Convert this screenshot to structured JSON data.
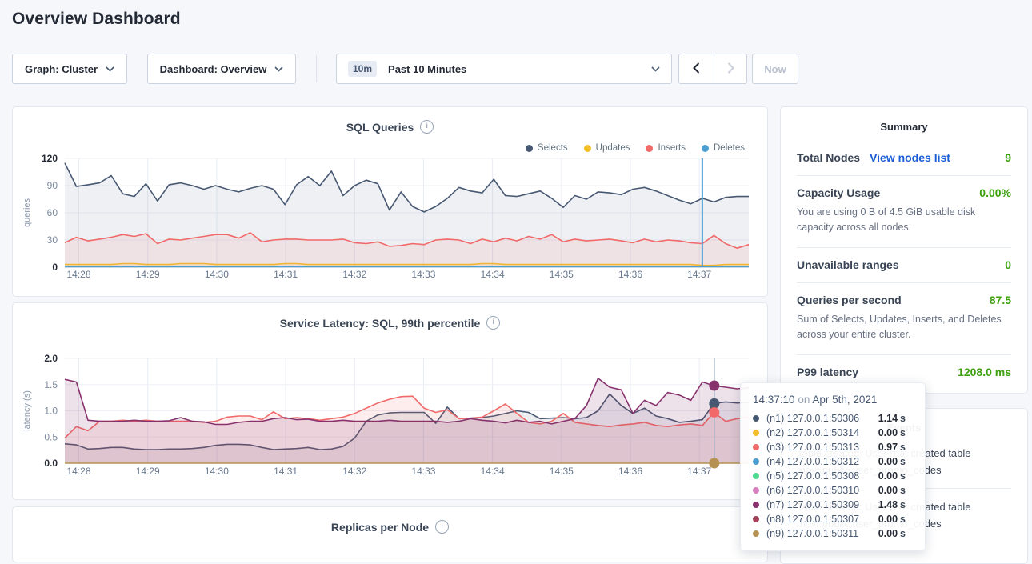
{
  "page_title": "Overview Dashboard",
  "controls": {
    "graph_dropdown": "Graph: Cluster",
    "dashboard_dropdown": "Dashboard: Overview",
    "time_badge": "10m",
    "time_range": "Past 10 Minutes",
    "now_button": "Now"
  },
  "summary": {
    "title": "Summary",
    "rows": [
      {
        "label": "Total Nodes",
        "link": "View nodes list",
        "value": "9"
      },
      {
        "label": "Capacity Usage",
        "value": "0.00%",
        "desc": "You are using 0 B of 4.5 GiB usable disk capacity across all nodes."
      },
      {
        "label": "Unavailable ranges",
        "value": "0"
      },
      {
        "label": "Queries per second",
        "value": "87.5",
        "desc": "Sum of Selects, Updates, Inserts, and Deletes across your entire cluster."
      },
      {
        "label": "P99 latency",
        "value": "1208.0 ms"
      }
    ]
  },
  "events": {
    "title": "Events",
    "items": [
      {
        "text": "Table created: User root created table movr.public.user_promo_codes"
      },
      {
        "text": "Table created: User root created table movr.public.user_promo_codes"
      }
    ]
  },
  "tooltip": {
    "time": "14:37:10",
    "sep": "on",
    "date": "Apr 5th, 2021",
    "rows": [
      {
        "color": "#475872",
        "name": "(n1) 127.0.0.1:50306",
        "value": "1.14",
        "unit": "s"
      },
      {
        "color": "#F2BE2C",
        "name": "(n2) 127.0.0.1:50314",
        "value": "0.00",
        "unit": "s"
      },
      {
        "color": "#F16969",
        "name": "(n3) 127.0.0.1:50313",
        "value": "0.97",
        "unit": "s"
      },
      {
        "color": "#4E9FD1",
        "name": "(n4) 127.0.0.1:50312",
        "value": "0.00",
        "unit": "s"
      },
      {
        "color": "#49D990",
        "name": "(n5) 127.0.0.1:50308",
        "value": "0.00",
        "unit": "s"
      },
      {
        "color": "#D77FBF",
        "name": "(n6) 127.0.0.1:50310",
        "value": "0.00",
        "unit": "s"
      },
      {
        "color": "#87326D",
        "name": "(n7) 127.0.0.1:50309",
        "value": "1.48",
        "unit": "s"
      },
      {
        "color": "#A3415B",
        "name": "(n8) 127.0.0.1:50307",
        "value": "0.00",
        "unit": "s"
      },
      {
        "color": "#B59153",
        "name": "(n9) 127.0.0.1:50311",
        "value": "0.00",
        "unit": "s"
      }
    ]
  },
  "chart_data": [
    {
      "id": "sql",
      "type": "line",
      "title": "SQL Queries",
      "ylabel": "queries",
      "ylim": [
        0,
        120
      ],
      "yticks": [
        0,
        30,
        60,
        90,
        120
      ],
      "ytick_labels": [
        "0",
        "30",
        "60",
        "90",
        "120"
      ],
      "x_tick_labels": [
        "14:28",
        "14:29",
        "14:30",
        "14:31",
        "14:32",
        "14:33",
        "14:34",
        "14:35",
        "14:36",
        "14:37"
      ],
      "grid": true,
      "legend_position": "top-right",
      "hover_line": {
        "x_frac": 0.932,
        "color": "#4E9FD1"
      },
      "series": [
        {
          "name": "Selects",
          "color": "#475872",
          "fill": "rgba(95,108,135,0.10)",
          "values": [
            115,
            89,
            91,
            93,
            101,
            81,
            78,
            92,
            73,
            91,
            93,
            90,
            86,
            90,
            86,
            83,
            87,
            90,
            86,
            69,
            91,
            100,
            90,
            106,
            79,
            90,
            96,
            92,
            63,
            83,
            67,
            61,
            67,
            76,
            88,
            84,
            82,
            97,
            79,
            78,
            81,
            84,
            76,
            66,
            79,
            75,
            83,
            82,
            80,
            86,
            88,
            84,
            79,
            74,
            70,
            76,
            72,
            77,
            78,
            78
          ]
        },
        {
          "name": "Updates",
          "color": "#F2BE2C",
          "fill": "rgba(242,190,44,0.12)",
          "values": [
            3,
            3,
            3,
            3,
            3,
            4,
            4,
            3,
            3,
            3,
            4,
            4,
            4,
            3,
            3,
            3,
            3,
            3,
            3,
            4,
            4,
            3,
            3,
            3,
            3,
            3,
            3,
            3,
            3,
            3,
            3,
            3,
            3,
            3,
            3,
            3,
            4,
            4,
            3,
            3,
            3,
            3,
            3,
            3,
            3,
            3,
            3,
            3,
            3,
            3,
            3,
            3,
            3,
            3,
            3,
            2,
            2,
            3,
            3,
            3
          ]
        },
        {
          "name": "Inserts",
          "color": "#F16969",
          "fill": "rgba(241,105,105,0.10)",
          "values": [
            27,
            33,
            29,
            31,
            33,
            36,
            34,
            37,
            26,
            31,
            30,
            32,
            34,
            36,
            36,
            32,
            38,
            28,
            30,
            31,
            31,
            30,
            30,
            30,
            31,
            27,
            26,
            28,
            23,
            24,
            26,
            25,
            30,
            31,
            30,
            26,
            31,
            28,
            32,
            29,
            34,
            31,
            36,
            28,
            31,
            29,
            30,
            31,
            29,
            27,
            31,
            28,
            30,
            29,
            27,
            26,
            35,
            26,
            21,
            25
          ]
        },
        {
          "name": "Deletes",
          "color": "#4E9FD1",
          "fill": "none",
          "values": [
            0.6,
            0.6,
            0.6,
            0.6,
            0.6,
            0.6,
            0.6,
            0.6,
            0.6,
            0.6,
            0.6,
            0.6,
            0.6,
            0.6,
            0.6,
            0.6,
            0.6,
            0.6,
            0.6,
            0.6,
            0.6,
            0.6,
            0.6,
            0.6,
            0.6,
            0.6,
            0.6,
            0.6,
            0.6,
            0.6,
            0.6,
            0.6,
            0.6,
            0.6,
            0.6,
            0.6,
            0.6,
            0.6,
            0.6,
            0.6,
            0.6,
            0.6,
            0.6,
            0.6,
            0.6,
            0.6,
            0.6,
            0.6,
            0.6,
            0.6,
            0.6,
            0.6,
            0.6,
            0.6,
            0.6,
            0.6,
            0.6,
            0.6,
            0.6,
            0.6
          ]
        }
      ]
    },
    {
      "id": "latency",
      "type": "line",
      "title": "Service Latency: SQL, 99th percentile",
      "ylabel": "latency (s)",
      "ylim": [
        0,
        2
      ],
      "yticks": [
        0,
        0.5,
        1.0,
        1.5,
        2.0
      ],
      "ytick_labels": [
        "0.0",
        "0.5",
        "1.0",
        "1.5",
        "2.0"
      ],
      "x_tick_labels": [
        "14:28",
        "14:29",
        "14:30",
        "14:31",
        "14:32",
        "14:33",
        "14:34",
        "14:35",
        "14:36",
        "14:37"
      ],
      "grid": true,
      "hover_line": {
        "x_frac": 0.9495,
        "color": "#a3adbc",
        "dots": [
          {
            "color": "#87326D",
            "value": 1.48
          },
          {
            "color": "#475872",
            "value": 1.14
          },
          {
            "color": "#F16969",
            "value": 0.97
          },
          {
            "color": "#B59153",
            "value": 0.0
          }
        ]
      },
      "series": [
        {
          "name": "(n1) 127.0.0.1:50306",
          "color": "#475872",
          "fill": "rgba(95,108,135,0.12)",
          "values": [
            0.37,
            0.35,
            0.27,
            0.28,
            0.3,
            0.3,
            0.27,
            0.26,
            0.26,
            0.27,
            0.27,
            0.28,
            0.3,
            0.34,
            0.36,
            0.36,
            0.35,
            0.3,
            0.26,
            0.27,
            0.28,
            0.3,
            0.26,
            0.27,
            0.32,
            0.48,
            0.8,
            0.92,
            0.96,
            0.97,
            0.97,
            0.97,
            0.76,
            1.07,
            0.85,
            0.86,
            0.87,
            0.9,
            0.95,
            1.0,
            0.97,
            0.85,
            0.86,
            0.87,
            0.85,
            0.87,
            1.0,
            1.32,
            1.1,
            0.95,
            1.05,
            0.9,
            0.85,
            0.78,
            0.8,
            0.83,
            1.14,
            1.17,
            1.15,
            1.16
          ]
        },
        {
          "name": "(n3) 127.0.0.1:50313",
          "color": "#F16969",
          "fill": "rgba(241,105,105,0.12)",
          "values": [
            0.48,
            0.7,
            0.62,
            0.8,
            0.8,
            0.82,
            0.8,
            0.82,
            0.8,
            0.8,
            0.8,
            0.8,
            0.78,
            0.8,
            0.88,
            0.9,
            0.9,
            0.83,
            0.98,
            0.85,
            0.87,
            0.85,
            0.82,
            0.85,
            0.88,
            0.95,
            1.05,
            1.15,
            1.22,
            1.27,
            1.28,
            1.05,
            0.97,
            1.02,
            0.85,
            0.86,
            0.88,
            1.0,
            1.13,
            0.95,
            0.78,
            0.75,
            0.8,
            0.95,
            0.78,
            0.75,
            0.72,
            0.7,
            0.73,
            0.75,
            0.78,
            0.72,
            0.7,
            0.73,
            0.75,
            0.72,
            0.97,
            0.8,
            0.85,
            0.88
          ]
        },
        {
          "name": "(n7) 127.0.0.1:50309",
          "color": "#87326D",
          "fill": "rgba(135,50,109,0.14)",
          "values": [
            1.6,
            1.55,
            0.82,
            0.8,
            0.8,
            0.8,
            0.82,
            0.8,
            0.8,
            0.81,
            0.87,
            0.8,
            0.79,
            0.74,
            0.74,
            0.78,
            0.8,
            0.8,
            0.85,
            0.87,
            0.83,
            0.84,
            0.8,
            0.8,
            0.82,
            0.8,
            0.8,
            0.8,
            0.82,
            0.8,
            0.8,
            0.8,
            0.8,
            0.78,
            0.8,
            0.85,
            0.82,
            0.8,
            0.77,
            0.82,
            0.78,
            0.8,
            0.75,
            0.8,
            0.85,
            1.1,
            1.62,
            1.45,
            1.4,
            0.95,
            1.2,
            1.1,
            1.35,
            1.3,
            1.2,
            1.55,
            1.48,
            1.45,
            1.42,
            1.44
          ]
        },
        {
          "name": "(n9) 127.0.0.1:50311",
          "color": "#B59153",
          "fill": "none",
          "flat": 0.0
        }
      ]
    },
    {
      "id": "replicas",
      "type": "line",
      "title": "Replicas per Node"
    }
  ]
}
